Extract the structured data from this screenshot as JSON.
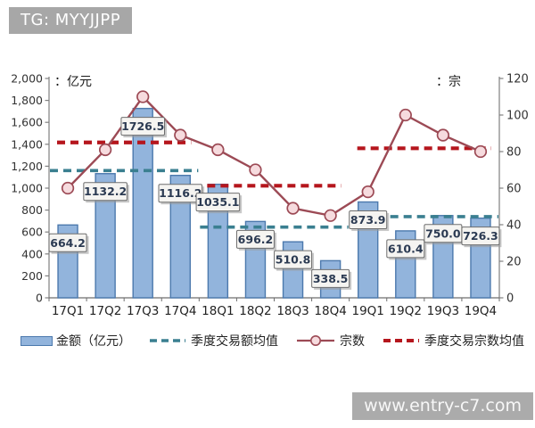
{
  "watermark_top": "TG: MYYJJPP",
  "watermark_bottom": "www.entry-c7.com",
  "chart_data": {
    "type": "combo: bar + line + dashed mean segments",
    "categories": [
      "17Q1",
      "17Q2",
      "17Q3",
      "17Q4",
      "18Q1",
      "18Q2",
      "18Q3",
      "18Q4",
      "19Q1",
      "19Q2",
      "19Q3",
      "19Q4"
    ],
    "bar_series": {
      "name": "金额（亿元）",
      "axis": "left",
      "values": [
        664.2,
        1132.2,
        1726.5,
        1116.2,
        1035.1,
        696.2,
        510.8,
        338.5,
        873.9,
        610.4,
        750.0,
        726.3
      ],
      "data_labels": [
        "664.2",
        "1132.2",
        "1726.5",
        "1116.2",
        "1035.1",
        "696.2",
        "510.8",
        "338.5",
        "873.9",
        "610.4",
        "750.0",
        "726.3"
      ]
    },
    "line_series": {
      "name": "宗数",
      "axis": "right",
      "values": [
        60,
        81,
        110,
        89,
        81,
        70,
        49,
        45,
        58,
        100,
        89,
        80
      ]
    },
    "mean_lines": [
      {
        "name": "季度交易额均值",
        "axis": "left",
        "style": "dashed",
        "segments": [
          {
            "from": 0,
            "to": 3,
            "value": 1159.8
          },
          {
            "from": 4,
            "to": 7,
            "value": 645.2
          },
          {
            "from": 8,
            "to": 11,
            "value": 740.2
          }
        ]
      },
      {
        "name": "季度交易宗数均值",
        "axis": "right",
        "style": "dashed",
        "segments": [
          {
            "from": 0,
            "to": 3,
            "value": 85.0
          },
          {
            "from": 4,
            "to": 7,
            "value": 61.3
          },
          {
            "from": 8,
            "to": 11,
            "value": 81.8
          }
        ]
      }
    ],
    "left_axis": {
      "unit_label": "：亿元",
      "min": 0,
      "max": 2000,
      "step": 200
    },
    "right_axis": {
      "unit_label": "：宗",
      "min": 0,
      "max": 120,
      "step": 20
    },
    "grid": false,
    "legend_position": "bottom",
    "legend": [
      {
        "label": "金额（亿元）",
        "swatch": "bar"
      },
      {
        "label": "季度交易额均值",
        "swatch": "teal-dash"
      },
      {
        "label": "宗数",
        "swatch": "line-marker"
      },
      {
        "label": "季度交易宗数均值",
        "swatch": "red-dash"
      }
    ],
    "colors": {
      "bar_fill": "#92b4dc",
      "bar_stroke": "#4c79ad",
      "line": "#9c4a55",
      "marker_fill": "#f6dbde",
      "amount_mean": "#3a7f90",
      "count_mean": "#b5161d",
      "label_box_fill": "#f5f4f1",
      "label_box_stroke": "#6e6e6e",
      "label_text": "#2b3a52",
      "axis": "#808080",
      "tick_text": "#333333"
    }
  }
}
